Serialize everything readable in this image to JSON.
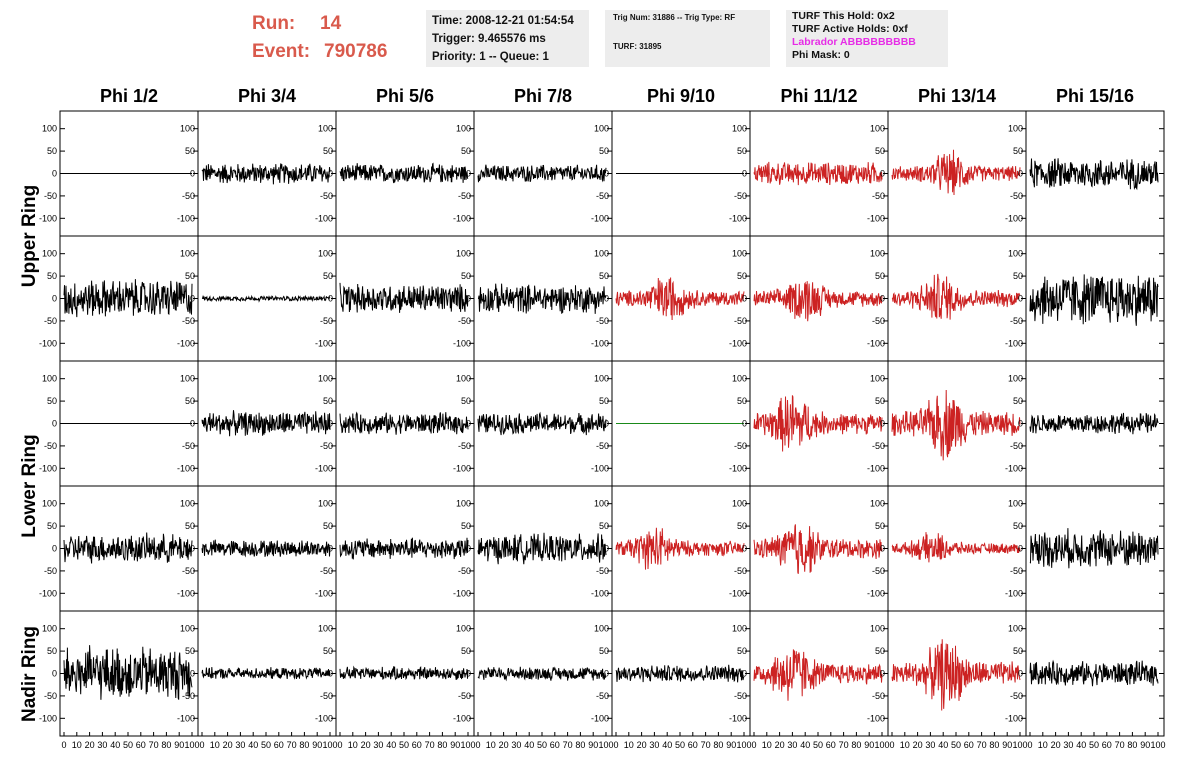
{
  "header": {
    "run_label": "Run:",
    "run_value": "14",
    "event_label": "Event:",
    "event_value": "790786"
  },
  "info_time": {
    "time": "Time: 2008-12-21 01:54:54",
    "trigger": "Trigger: 9.465576 ms",
    "priority": "Priority: 1 -- Queue: 1"
  },
  "info_trig": {
    "trig": "Trig Num: 31886 -- Trig Type: RF",
    "turf": "TURF: 31895"
  },
  "info_turf": {
    "hold": "TURF This Hold: 0x2",
    "active": "TURF Active Holds: 0xf",
    "labrador": "Labrador ABBBBBBBBB",
    "phimask": "Phi Mask: 0"
  },
  "colors": {
    "normal": "#000000",
    "triggered": "#cc2222",
    "flat_green": "#1a8a1a",
    "title_red": "#d95a4c",
    "labrador": "#e62de6"
  },
  "chart_data": {
    "type": "line",
    "columns": [
      "Phi 1/2",
      "Phi 3/4",
      "Phi 5/6",
      "Phi 7/8",
      "Phi 9/10",
      "Phi 11/12",
      "Phi 13/14",
      "Phi 15/16"
    ],
    "row_labels": [
      "Upper Ring",
      "Lower Ring",
      "Nadir Ring"
    ],
    "ylim": [
      -135,
      135
    ],
    "yticks": [
      -100,
      -50,
      0,
      50,
      100
    ],
    "xlim": [
      0,
      100
    ],
    "xtick_labels": [
      "0",
      "10",
      "20",
      "30",
      "40",
      "50",
      "60",
      "70",
      "80",
      "90",
      "100"
    ],
    "panels": [
      [
        {
          "amp": 0,
          "color": "normal"
        },
        {
          "amp": 22,
          "color": "normal"
        },
        {
          "amp": 20,
          "color": "normal"
        },
        {
          "amp": 18,
          "color": "normal"
        },
        {
          "amp": 0,
          "color": "normal"
        },
        {
          "amp": 24,
          "color": "triggered"
        },
        {
          "amp": 28,
          "color": "triggered",
          "burst": 45
        },
        {
          "amp": 32,
          "color": "normal"
        }
      ],
      [
        {
          "amp": 40,
          "color": "normal"
        },
        {
          "amp": 5,
          "color": "normal"
        },
        {
          "amp": 30,
          "color": "normal"
        },
        {
          "amp": 30,
          "color": "normal"
        },
        {
          "amp": 30,
          "color": "triggered",
          "burst": 40
        },
        {
          "amp": 30,
          "color": "triggered",
          "burst": 40
        },
        {
          "amp": 32,
          "color": "triggered",
          "burst": 38
        },
        {
          "amp": 55,
          "color": "normal"
        }
      ],
      [
        {
          "amp": 0,
          "color": "normal"
        },
        {
          "amp": 25,
          "color": "normal"
        },
        {
          "amp": 22,
          "color": "normal"
        },
        {
          "amp": 22,
          "color": "normal"
        },
        {
          "amp": 0,
          "color": "flat_green"
        },
        {
          "amp": 40,
          "color": "triggered",
          "burst": 30
        },
        {
          "amp": 45,
          "color": "triggered",
          "burst": 42
        },
        {
          "amp": 22,
          "color": "normal"
        }
      ],
      [
        {
          "amp": 30,
          "color": "normal"
        },
        {
          "amp": 18,
          "color": "normal"
        },
        {
          "amp": 22,
          "color": "normal"
        },
        {
          "amp": 30,
          "color": "normal"
        },
        {
          "amp": 28,
          "color": "triggered",
          "burst": 30
        },
        {
          "amp": 38,
          "color": "triggered",
          "burst": 35
        },
        {
          "amp": 20,
          "color": "triggered",
          "burst": 32
        },
        {
          "amp": 40,
          "color": "normal"
        }
      ],
      [
        {
          "amp": 55,
          "color": "normal"
        },
        {
          "amp": 12,
          "color": "normal"
        },
        {
          "amp": 14,
          "color": "normal"
        },
        {
          "amp": 14,
          "color": "normal"
        },
        {
          "amp": 18,
          "color": "normal"
        },
        {
          "amp": 40,
          "color": "triggered",
          "burst": 30
        },
        {
          "amp": 45,
          "color": "triggered",
          "burst": 42
        },
        {
          "amp": 25,
          "color": "normal"
        }
      ]
    ]
  }
}
